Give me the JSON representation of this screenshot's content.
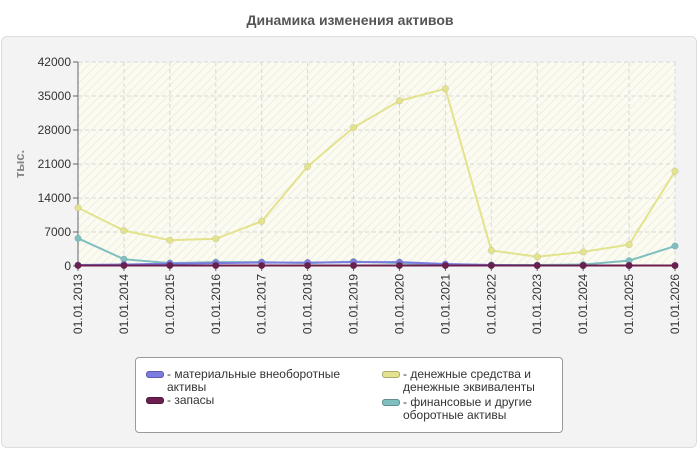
{
  "chart_data": {
    "type": "line",
    "title": "Динамика изменения активов",
    "ylabel": "тыс.",
    "xlabel": "",
    "categories": [
      "01.01.2013",
      "01.01.2014",
      "01.01.2015",
      "01.01.2016",
      "01.01.2017",
      "01.01.2018",
      "01.01.2019",
      "01.01.2020",
      "01.01.2021",
      "01.01.2022",
      "01.01.2023",
      "01.01.2024",
      "01.01.2025",
      "01.01.2026"
    ],
    "ylim": [
      0,
      42000
    ],
    "yticks": [
      "0",
      "7000",
      "14000",
      "21000",
      "28000",
      "35000",
      "42000"
    ],
    "grid": true,
    "legend_position": "bottom",
    "series": [
      {
        "name": "- материальные внеоборотные\nактивы",
        "color": "#7b7be0",
        "values": [
          200,
          300,
          500,
          600,
          700,
          700,
          800,
          800,
          400,
          200,
          100,
          100,
          100,
          100
        ]
      },
      {
        "name": "- запасы",
        "color": "#6b1f4f",
        "values": [
          100,
          100,
          100,
          100,
          100,
          100,
          100,
          100,
          100,
          100,
          100,
          100,
          100,
          100
        ]
      },
      {
        "name": "- денежные средства и\nденежные эквиваленты",
        "color": "#e3e38e",
        "values": [
          12000,
          7300,
          5300,
          5600,
          9200,
          20500,
          28500,
          34000,
          36500,
          3200,
          1900,
          2900,
          4400,
          19500
        ]
      },
      {
        "name": "- финансовые и другие\nоборотные активы",
        "color": "#7fbfbf",
        "values": [
          5700,
          1400,
          600,
          800,
          800,
          600,
          900,
          600,
          300,
          200,
          200,
          300,
          1100,
          4100
        ]
      }
    ]
  }
}
